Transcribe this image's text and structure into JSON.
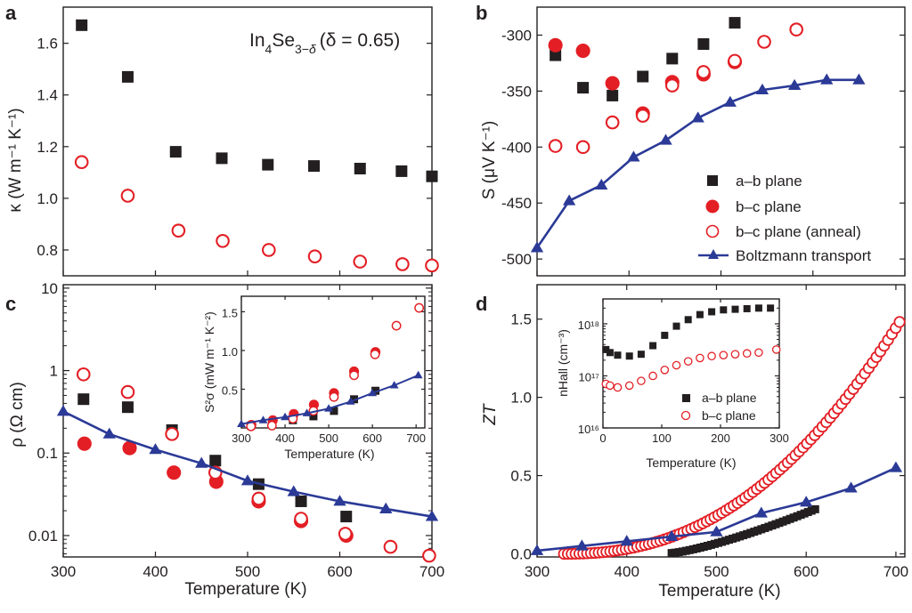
{
  "colors": {
    "black": "#231f20",
    "red": "#e31e24",
    "blue": "#2b3a97"
  },
  "chart_data": [
    {
      "panel": "a",
      "type": "scatter",
      "title": "In4Se3−δ (δ = 0.65)",
      "annotation": {
        "base": "In",
        "sub1": "4",
        "mid": "Se",
        "sub2": "3−",
        "sub3": "δ",
        "rest": "(δ = 0.65)"
      },
      "xlim": [
        300,
        700
      ],
      "ylim": [
        0.7,
        1.74
      ],
      "yticks": [
        "0.8",
        "1.0",
        "1.2",
        "1.4",
        "1.6"
      ],
      "ylabel": "κ (W m⁻¹ K⁻¹)",
      "series": [
        {
          "name": "a–b plane",
          "marker": "square",
          "color": "#231f20",
          "x": [
            320,
            370,
            422,
            472,
            522,
            572,
            622,
            667,
            700
          ],
          "y": [
            1.67,
            1.47,
            1.18,
            1.155,
            1.13,
            1.125,
            1.115,
            1.105,
            1.085
          ]
        },
        {
          "name": "b–c plane",
          "marker": "open-circle",
          "color": "#e31e24",
          "x": [
            320,
            370,
            425,
            473,
            523,
            573,
            622,
            668,
            700
          ],
          "y": [
            1.14,
            1.01,
            0.875,
            0.835,
            0.8,
            0.775,
            0.755,
            0.745,
            0.74
          ]
        }
      ]
    },
    {
      "panel": "b",
      "type": "scatter",
      "xlim": [
        300,
        700
      ],
      "ylim": [
        -515,
        -275
      ],
      "yticks": [
        "-300",
        "-350",
        "-400",
        "-450",
        "-500"
      ],
      "ylabel": "S (μV K⁻¹)",
      "legend": [
        "a–b plane",
        "b–c plane",
        "b–c plane (anneal)",
        "Boltzmann transport"
      ],
      "series": [
        {
          "name": "a–b plane",
          "marker": "square",
          "color": "#231f20",
          "x": [
            320,
            350,
            382,
            415,
            447,
            481,
            515
          ],
          "y": [
            -318,
            -347,
            -354,
            -337,
            -321,
            -308,
            -289
          ]
        },
        {
          "name": "b–c plane",
          "marker": "filled-circle",
          "color": "#e31e24",
          "x": [
            320,
            350,
            382,
            415,
            447,
            481,
            515
          ],
          "y": [
            -309,
            -314,
            -343,
            -370,
            -342,
            -335,
            -324
          ]
        },
        {
          "name": "b–c plane (anneal)",
          "marker": "open-circle",
          "color": "#e31e24",
          "x": [
            320,
            350,
            382,
            415,
            447,
            481,
            515,
            547,
            582
          ],
          "y": [
            -399,
            -400,
            -378,
            -372,
            -345,
            -333,
            -323,
            -306,
            -295
          ]
        },
        {
          "name": "Boltzmann transport",
          "marker": "triangle-line",
          "color": "#2b3a97",
          "x": [
            300,
            335,
            370,
            405,
            440,
            475,
            510,
            545,
            580,
            615,
            650
          ],
          "y": [
            -490,
            -448,
            -434,
            -409,
            -394,
            -374,
            -360,
            -349,
            -345,
            -340,
            -340
          ]
        }
      ]
    },
    {
      "panel": "c",
      "type": "scatter",
      "xlim": [
        300,
        700
      ],
      "yscale": "log",
      "ylim": [
        0.0055,
        11
      ],
      "yticks": [
        "10",
        "1",
        "0.1",
        "0.01"
      ],
      "xticks": [
        "300",
        "400",
        "500",
        "600",
        "700"
      ],
      "xlabel": "Temperature (K)",
      "ylabel": "ρ (Ω cm)",
      "series": [
        {
          "name": "a–b plane",
          "marker": "square",
          "color": "#231f20",
          "x": [
            322,
            370,
            418,
            465,
            512,
            558,
            607
          ],
          "y": [
            0.45,
            0.36,
            0.19,
            0.081,
            0.042,
            0.026,
            0.017
          ]
        },
        {
          "name": "b–c plane",
          "marker": "filled-circle",
          "color": "#e31e24",
          "x": [
            323,
            372,
            420,
            466,
            512,
            558,
            607
          ],
          "y": [
            0.13,
            0.115,
            0.058,
            0.045,
            0.026,
            0.015,
            0.01
          ]
        },
        {
          "name": "b–c plane (anneal)",
          "marker": "open-circle",
          "color": "#e31e24",
          "x": [
            322,
            370,
            418,
            465,
            512,
            558,
            606,
            655,
            697
          ],
          "y": [
            0.9,
            0.55,
            0.17,
            0.058,
            0.028,
            0.016,
            0.0105,
            0.0073,
            0.0057
          ]
        },
        {
          "name": "Boltzmann transport",
          "marker": "triangle-line",
          "color": "#2b3a97",
          "x": [
            300,
            350,
            400,
            450,
            500,
            550,
            600,
            650,
            700
          ],
          "y": [
            0.32,
            0.17,
            0.11,
            0.075,
            0.046,
            0.034,
            0.026,
            0.021,
            0.017
          ]
        }
      ],
      "inset": {
        "type": "scatter",
        "xlim": [
          300,
          720
        ],
        "ylim": [
          0,
          1.7
        ],
        "xticks": [
          "300",
          "400",
          "500",
          "600",
          "700"
        ],
        "yticks": [
          "0.5",
          "1.0",
          "1.5"
        ],
        "xlabel": "Temperature (K)",
        "ylabel": "S²σ (mW m⁻¹ K⁻²)",
        "series": [
          {
            "name": "a–b plane",
            "marker": "square",
            "color": "#231f20",
            "x": [
              322,
              370,
              418,
              465,
              512,
              558,
              607
            ],
            "y": [
              0.03,
              0.05,
              0.1,
              0.15,
              0.22,
              0.37,
              0.48
            ]
          },
          {
            "name": "b–c plane",
            "marker": "filled-circle",
            "color": "#e31e24",
            "x": [
              323,
              372,
              420,
              466,
              512,
              558,
              607
            ],
            "y": [
              0.04,
              0.1,
              0.18,
              0.3,
              0.45,
              0.73,
              0.98
            ]
          },
          {
            "name": "b–c plane (anneal)",
            "marker": "open-circle",
            "color": "#e31e24",
            "x": [
              322,
              370,
              418,
              465,
              512,
              558,
              606,
              655,
              707
            ],
            "y": [
              0.02,
              0.03,
              0.12,
              0.22,
              0.4,
              0.68,
              0.95,
              1.32,
              1.55
            ]
          },
          {
            "name": "Boltzmann transport",
            "marker": "triangle-line",
            "color": "#2b3a97",
            "x": [
              300,
              350,
              400,
              450,
              500,
              550,
              600,
              650,
              705
            ],
            "y": [
              0.05,
              0.1,
              0.14,
              0.19,
              0.25,
              0.34,
              0.45,
              0.55,
              0.68
            ]
          }
        ]
      }
    },
    {
      "panel": "d",
      "type": "scatter",
      "xlim": [
        300,
        710
      ],
      "ylim": [
        -0.02,
        1.72
      ],
      "xticks": [
        "300",
        "400",
        "500",
        "600",
        "700"
      ],
      "yticks": [
        "0.0",
        "0.5",
        "1.0",
        "1.5"
      ],
      "xlabel": "Temperature (K)",
      "ylabel": "ZT",
      "series": [
        {
          "name": "a–b plane",
          "marker": "square",
          "color": "#231f20",
          "x_range": [
            450,
            610
          ],
          "y_curve": "0.005 + 0.28*((T-450)/160)^1.3"
        },
        {
          "name": "b–c plane (anneal)",
          "marker": "open-circle",
          "color": "#e31e24",
          "x_range": [
            330,
            705
          ],
          "y_curve": "1.49*((T-330)/375)^2.3"
        },
        {
          "name": "Boltzmann transport",
          "marker": "triangle-line",
          "color": "#2b3a97",
          "x": [
            300,
            350,
            400,
            450,
            500,
            550,
            600,
            650,
            700
          ],
          "y": [
            0.02,
            0.05,
            0.08,
            0.11,
            0.14,
            0.26,
            0.33,
            0.42,
            0.55
          ]
        }
      ],
      "inset": {
        "type": "scatter",
        "xlim": [
          0,
          300
        ],
        "yscale": "log",
        "ylim": [
          1e+16,
          3e+18
        ],
        "xticks": [
          "0",
          "100",
          "200",
          "300"
        ],
        "yticks": [
          "10¹⁸",
          "10¹⁷",
          "10¹⁶"
        ],
        "xlabel": "Temperature (K)",
        "ylabel": "nHall (cm⁻³)",
        "legend": [
          "a–b plane",
          "b–c plane"
        ],
        "series": [
          {
            "name": "a–b plane",
            "marker": "square",
            "color": "#231f20",
            "x": [
              5,
              12,
              25,
              45,
              65,
              85,
              105,
              125,
              145,
              165,
              185,
              205,
              225,
              245,
              265,
              285
            ],
            "y": [
              3.2e+17,
              2.8e+17,
              2.5e+17,
              2.4e+17,
              2.6e+17,
              3.8e+17,
              6e+17,
              9e+17,
              1.2e+18,
              1.5e+18,
              1.7e+18,
              1.85e+18,
              1.9e+18,
              1.95e+18,
              2e+18,
              2e+18
            ]
          },
          {
            "name": "b–c plane",
            "marker": "open-circle",
            "color": "#e31e24",
            "x": [
              5,
              12,
              25,
              45,
              65,
              85,
              105,
              125,
              145,
              165,
              185,
              205,
              225,
              245,
              265,
              295
            ],
            "y": [
              7e+16,
              6.5e+16,
              6e+16,
              6.5e+16,
              8e+16,
              1e+17,
              1.3e+17,
              1.6e+17,
              1.9e+17,
              2.2e+17,
              2.4e+17,
              2.5e+17,
              2.6e+17,
              2.7e+17,
              2.8e+17,
              3.2e+17
            ]
          }
        ]
      }
    }
  ]
}
